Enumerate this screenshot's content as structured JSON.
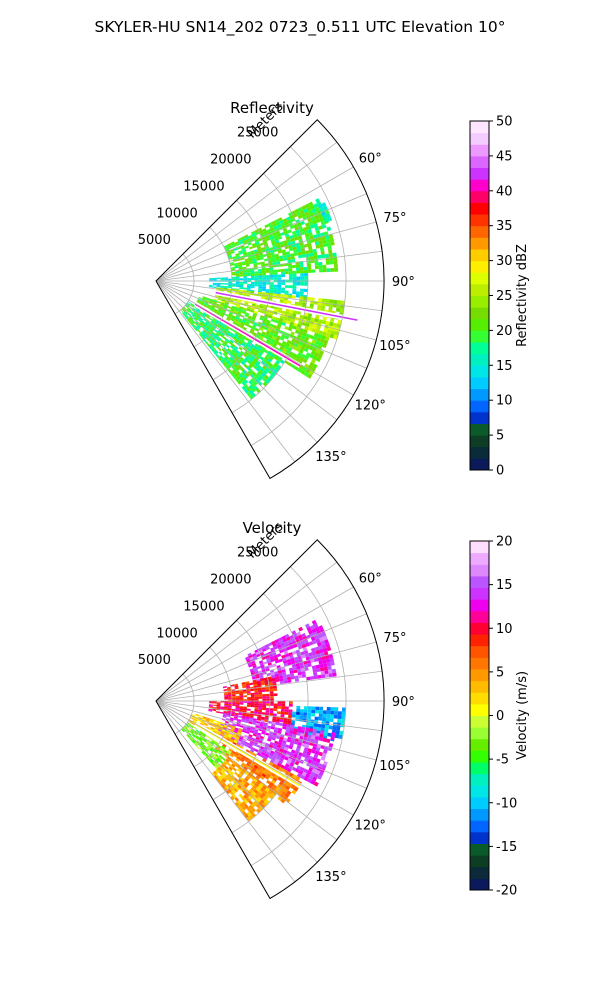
{
  "figure": {
    "title": "SKYLER-HU  SN14_202  0723_0.511 UTC Elevation 10°"
  },
  "chart_data": [
    {
      "type": "heatmap",
      "subtype": "polar-sector",
      "title": "Reflectivity",
      "radial_label": "Meters",
      "radial_ticks": [
        5000,
        10000,
        15000,
        20000,
        25000
      ],
      "radial_range": [
        0,
        30000
      ],
      "azimuth_range_deg": [
        45,
        150
      ],
      "azimuth_ticks_deg": [
        60,
        75,
        90,
        105,
        120,
        135
      ],
      "grid": true,
      "colorbar": {
        "label": "Reflectivity dBZ",
        "range": [
          0,
          50
        ],
        "ticks": [
          0,
          5,
          10,
          15,
          20,
          25,
          30,
          35,
          40,
          45,
          50
        ],
        "colors": [
          "#0a1a5a",
          "#0b2a3a",
          "#0d3d25",
          "#0a5a2a",
          "#0033cc",
          "#0066ff",
          "#0099ff",
          "#00ccff",
          "#00e5e5",
          "#00f0c0",
          "#00ff99",
          "#33ff33",
          "#55ee00",
          "#77dd00",
          "#99ee00",
          "#bbee00",
          "#ddff00",
          "#ffee00",
          "#ffcc00",
          "#ff9900",
          "#ff6600",
          "#ff3300",
          "#ff0000",
          "#ff0066",
          "#ff00cc",
          "#cc33ff",
          "#dd66ff",
          "#ee99ff",
          "#f5ccff",
          "#ffe6ff"
        ]
      },
      "regions": [
        {
          "az": [
            63,
            87
          ],
          "r": [
            10000,
            24000
          ],
          "value": 20
        },
        {
          "az": [
            87,
            96
          ],
          "r": [
            7000,
            20000
          ],
          "value": 15
        },
        {
          "az": [
            96,
            108
          ],
          "r": [
            8000,
            25000
          ],
          "value": 25
        },
        {
          "az": [
            108,
            122
          ],
          "r": [
            6000,
            24000
          ],
          "value": 21
        },
        {
          "az": [
            122,
            140
          ],
          "r": [
            5000,
            20000
          ],
          "value": 19
        },
        {
          "az": [
            65,
            70
          ],
          "r": [
            23500,
            24500
          ],
          "value": 16
        }
      ],
      "rays": [
        {
          "az": 101,
          "r": [
            8000,
            27000
          ],
          "value": 42
        },
        {
          "az": 120.5,
          "r": [
            6000,
            22000
          ],
          "value": 40
        }
      ]
    },
    {
      "type": "heatmap",
      "subtype": "polar-sector",
      "title": "Velocity",
      "radial_label": "Meters",
      "radial_ticks": [
        5000,
        10000,
        15000,
        20000,
        25000
      ],
      "radial_range": [
        0,
        30000
      ],
      "azimuth_range_deg": [
        45,
        150
      ],
      "azimuth_ticks_deg": [
        60,
        75,
        90,
        105,
        120,
        135
      ],
      "grid": true,
      "colorbar": {
        "label": "Velocity (m/s)",
        "range": [
          -20,
          20
        ],
        "ticks": [
          -20,
          -15,
          -10,
          -5,
          0,
          5,
          10,
          15,
          20
        ],
        "colors": [
          "#0a1a5a",
          "#0b2a3a",
          "#0d3d25",
          "#0a5a2a",
          "#0033cc",
          "#0066ff",
          "#0099ff",
          "#00ccff",
          "#00e5e5",
          "#00f0c0",
          "#00ff66",
          "#33ff00",
          "#66ee00",
          "#99ff33",
          "#ccff33",
          "#ffff00",
          "#ffdd00",
          "#ffbb00",
          "#ff9900",
          "#ff7700",
          "#ff5500",
          "#ff2200",
          "#ff0033",
          "#ff0099",
          "#ee00ee",
          "#cc33ff",
          "#bb55ff",
          "#dd88ff",
          "#eeaaff",
          "#ffddff"
        ]
      },
      "regions": [
        {
          "az": [
            63,
            82
          ],
          "r": [
            13000,
            24000
          ],
          "value": 14
        },
        {
          "az": [
            78,
            90
          ],
          "r": [
            9000,
            16000
          ],
          "value": 9
        },
        {
          "az": [
            90,
            100
          ],
          "r": [
            7000,
            18000
          ],
          "value": 10
        },
        {
          "az": [
            92,
            102
          ],
          "r": [
            18000,
            25000
          ],
          "value": -11
        },
        {
          "az": [
            100,
            118
          ],
          "r": [
            9000,
            24000
          ],
          "value": 14
        },
        {
          "az": [
            108,
            122
          ],
          "r": [
            5000,
            12000
          ],
          "value": 3
        },
        {
          "az": [
            118,
            128
          ],
          "r": [
            10000,
            22000
          ],
          "value": 6
        },
        {
          "az": [
            124,
            138
          ],
          "r": [
            5000,
            12000
          ],
          "value": -3
        },
        {
          "az": [
            128,
            142
          ],
          "r": [
            12000,
            20000
          ],
          "value": 4
        }
      ],
      "rays": [
        {
          "az": 120.5,
          "r": [
            6000,
            22000
          ],
          "value": 0
        }
      ]
    }
  ]
}
